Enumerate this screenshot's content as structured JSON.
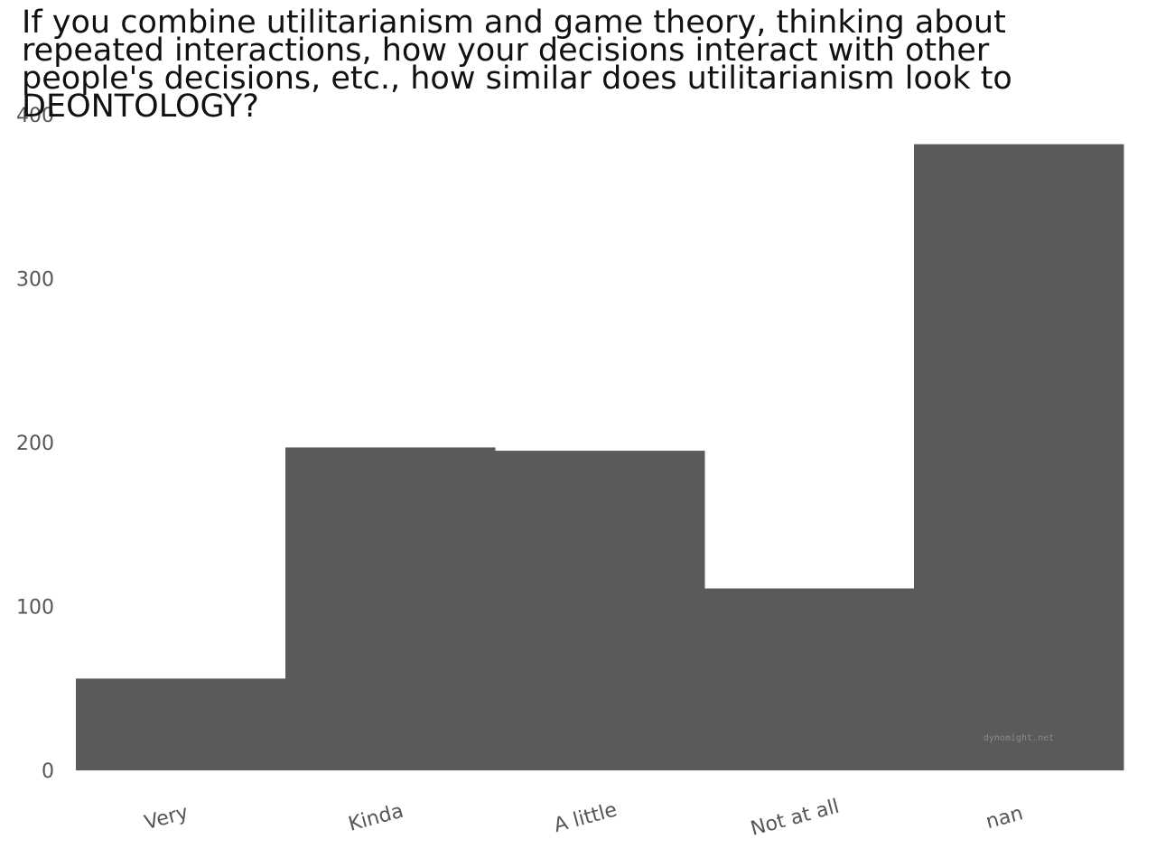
{
  "chart_data": {
    "type": "bar",
    "title": "If you combine utilitarianism and game theory, thinking about repeated interactions, how your decisions interact with other people's decisions, etc., how similar does utilitarianism look to DEONTOLOGY?",
    "categories": [
      "Very",
      "Kinda",
      "A little",
      "Not at all",
      "nan"
    ],
    "values": [
      56,
      197,
      195,
      111,
      382
    ],
    "ylim": [
      0,
      400
    ],
    "yticks": [
      0,
      100,
      200,
      300,
      400
    ],
    "xlabel": "",
    "ylabel": "",
    "grid": false,
    "bar_color": "#5a5a5a",
    "watermark": "dynomight.net"
  }
}
